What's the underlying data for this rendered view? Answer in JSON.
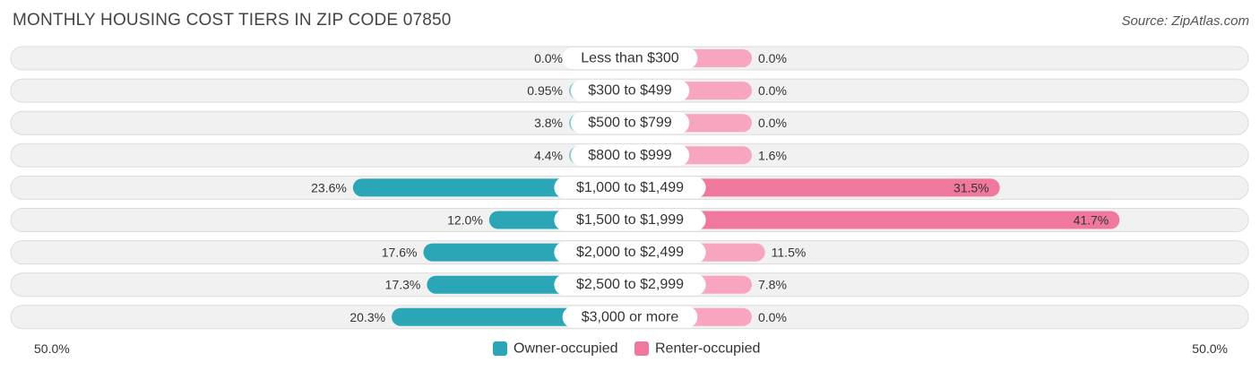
{
  "chart_data": {
    "type": "bar",
    "orientation": "horizontal-diverging",
    "title": "MONTHLY HOUSING COST TIERS IN ZIP CODE 07850",
    "source": "Source: ZipAtlas.com",
    "categories": [
      "Less than $300",
      "$300 to $499",
      "$500 to $799",
      "$800 to $999",
      "$1,000 to $1,499",
      "$1,500 to $1,999",
      "$2,000 to $2,499",
      "$2,500 to $2,999",
      "$3,000 or more"
    ],
    "series": [
      {
        "name": "Owner-occupied",
        "values": [
          0.0,
          0.95,
          3.8,
          4.4,
          23.6,
          12.0,
          17.6,
          17.3,
          20.3
        ],
        "labels": [
          "0.0%",
          "0.95%",
          "3.8%",
          "4.4%",
          "23.6%",
          "12.0%",
          "17.6%",
          "17.3%",
          "20.3%"
        ]
      },
      {
        "name": "Renter-occupied",
        "values": [
          0.0,
          0.0,
          0.0,
          1.6,
          31.5,
          41.7,
          11.5,
          7.8,
          0.0
        ],
        "labels": [
          "0.0%",
          "0.0%",
          "0.0%",
          "1.6%",
          "31.5%",
          "41.7%",
          "11.5%",
          "7.8%",
          "0.0%"
        ]
      }
    ],
    "axis": {
      "max": 50.0,
      "left_label": "50.0%",
      "right_label": "50.0%"
    },
    "legend_position": "bottom-center",
    "colors": {
      "owner_light": "#7ccbd3",
      "owner_dark": "#2aa6b6",
      "renter_light": "#f8a5bf",
      "renter_dark": "#f0789c",
      "row_bg": "#f1f1f1",
      "row_border": "#dcdcdc"
    }
  }
}
